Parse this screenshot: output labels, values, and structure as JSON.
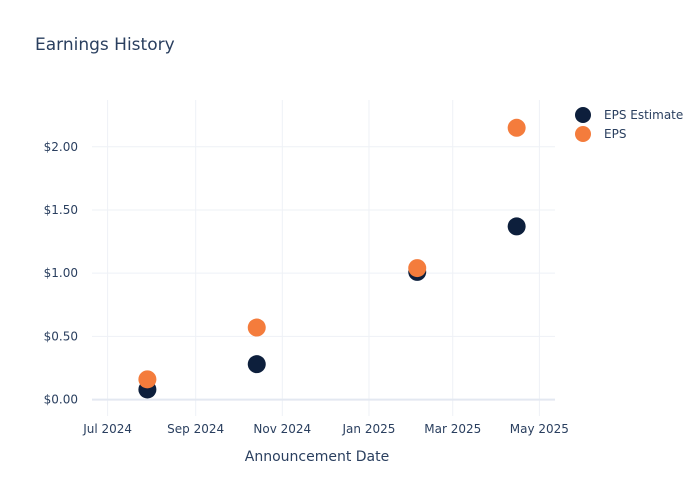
{
  "chart_data": {
    "type": "scatter",
    "title": "Earnings History",
    "xlabel": "Announcement Date",
    "ylabel": "",
    "x_tick_labels": [
      {
        "date": "2024-07-01",
        "label": "Jul 2024"
      },
      {
        "date": "2024-09-01",
        "label": "Sep 2024"
      },
      {
        "date": "2024-11-01",
        "label": "Nov 2024"
      },
      {
        "date": "2025-01-01",
        "label": "Jan 2025"
      },
      {
        "date": "2025-03-01",
        "label": "Mar 2025"
      },
      {
        "date": "2025-05-01",
        "label": "May 2025"
      }
    ],
    "y_tick_labels": [
      {
        "value": 0.0,
        "label": "$0.00"
      },
      {
        "value": 0.5,
        "label": "$0.50"
      },
      {
        "value": 1.0,
        "label": "$1.00"
      },
      {
        "value": 1.5,
        "label": "$1.50"
      },
      {
        "value": 2.0,
        "label": "$2.00"
      }
    ],
    "xlim": [
      "2024-06-20",
      "2025-05-12"
    ],
    "ylim": [
      -0.13,
      2.37
    ],
    "grid": true,
    "legend_position": "top-right",
    "series": [
      {
        "name": "EPS Estimate",
        "color": "#0d1f3c",
        "points": [
          {
            "x": "2024-07-29",
            "y": 0.08
          },
          {
            "x": "2024-10-14",
            "y": 0.28
          },
          {
            "x": "2025-02-04",
            "y": 1.01
          },
          {
            "x": "2025-04-15",
            "y": 1.37
          }
        ]
      },
      {
        "name": "EPS",
        "color": "#f47c3c",
        "points": [
          {
            "x": "2024-07-29",
            "y": 0.16
          },
          {
            "x": "2024-10-14",
            "y": 0.57
          },
          {
            "x": "2025-02-04",
            "y": 1.04
          },
          {
            "x": "2025-04-15",
            "y": 2.15
          }
        ]
      }
    ]
  }
}
